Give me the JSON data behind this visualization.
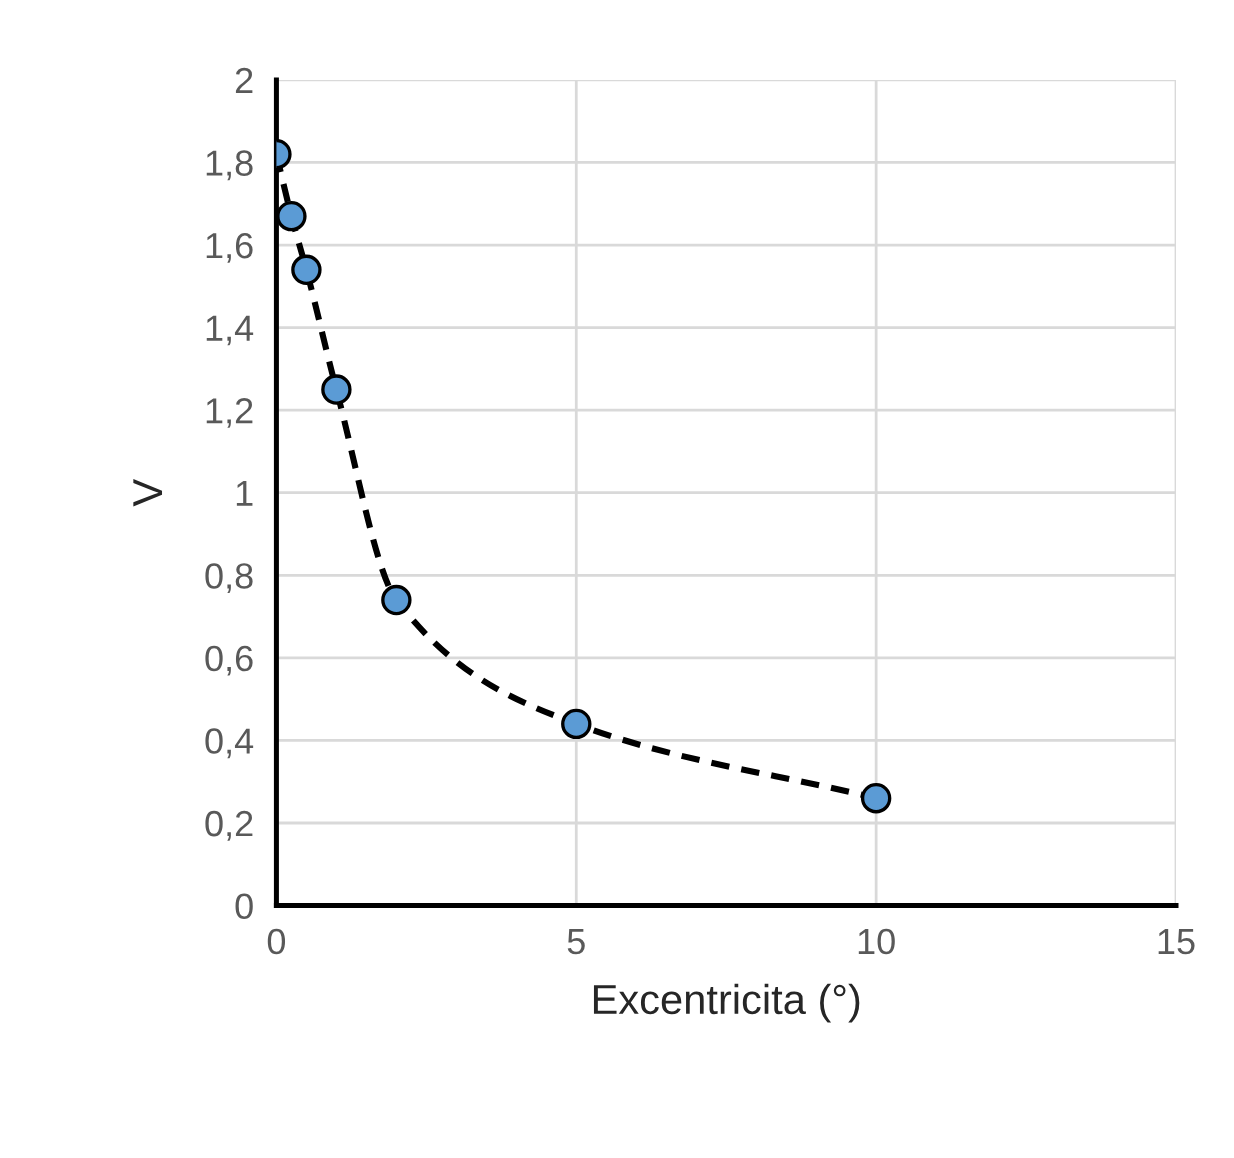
{
  "chart_data": {
    "type": "scatter",
    "xlabel": "Excentricita (°)",
    "ylabel": "V",
    "x": [
      0,
      0.25,
      0.5,
      1,
      2,
      5,
      10
    ],
    "series": [
      {
        "type": "line",
        "color": "#000000",
        "values": [
          1.82,
          1.67,
          1.54,
          1.25,
          0.74,
          0.44,
          0.26
        ],
        "line_style": "dashed",
        "marker": "none"
      },
      {
        "color": "#5b9bd5",
        "values": [
          1.82,
          1.67,
          1.54,
          1.25,
          0.74,
          0.44,
          0.26
        ],
        "marker": "circle"
      }
    ],
    "xlim": [
      0,
      15
    ],
    "xticks": [
      0,
      5,
      10,
      15
    ],
    "ylim": [
      0,
      2
    ],
    "yticks": [
      0,
      {
        "value": 0.2,
        "label": "0,2"
      },
      {
        "value": 0.4,
        "label": "0,4"
      },
      {
        "value": 0.6,
        "label": "0,6"
      },
      {
        "value": 0.8,
        "label": "0,8"
      },
      1,
      {
        "value": 1.2,
        "label": "1,2"
      },
      {
        "value": 1.4,
        "label": "1,4"
      },
      {
        "value": 1.6,
        "label": "1,6"
      },
      {
        "value": 1.8,
        "label": "1,8"
      },
      2
    ],
    "grid": true
  }
}
